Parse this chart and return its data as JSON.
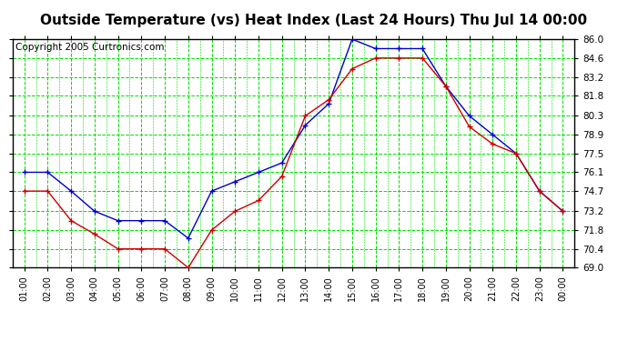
{
  "title": "Outside Temperature (vs) Heat Index (Last 24 Hours) Thu Jul 14 00:00",
  "copyright": "Copyright 2005 Curtronics.com",
  "x_labels": [
    "01:00",
    "02:00",
    "03:00",
    "04:00",
    "05:00",
    "06:00",
    "07:00",
    "08:00",
    "09:00",
    "10:00",
    "11:00",
    "12:00",
    "13:00",
    "14:00",
    "15:00",
    "16:00",
    "17:00",
    "18:00",
    "19:00",
    "20:00",
    "21:00",
    "22:00",
    "23:00",
    "00:00"
  ],
  "blue_data": [
    76.1,
    76.1,
    74.7,
    73.2,
    72.5,
    72.5,
    72.5,
    71.2,
    74.7,
    75.4,
    76.1,
    76.8,
    79.6,
    81.2,
    86.0,
    85.3,
    85.3,
    85.3,
    82.5,
    80.3,
    78.9,
    77.5,
    74.7,
    73.2
  ],
  "red_data": [
    74.7,
    74.7,
    72.5,
    71.5,
    70.4,
    70.4,
    70.4,
    69.0,
    71.8,
    73.2,
    74.0,
    75.8,
    80.3,
    81.5,
    83.8,
    84.6,
    84.6,
    84.6,
    82.5,
    79.5,
    78.2,
    77.5,
    74.7,
    73.2
  ],
  "ylim_min": 69.0,
  "ylim_max": 86.0,
  "yticks": [
    69.0,
    70.4,
    71.8,
    73.2,
    74.7,
    76.1,
    77.5,
    78.9,
    80.3,
    81.8,
    83.2,
    84.6,
    86.0
  ],
  "background_color": "#ffffff",
  "plot_background": "#ffffff",
  "grid_color": "#00dd00",
  "blue_color": "#0000cc",
  "red_color": "#cc0000",
  "title_fontsize": 11,
  "copyright_fontsize": 7.5
}
